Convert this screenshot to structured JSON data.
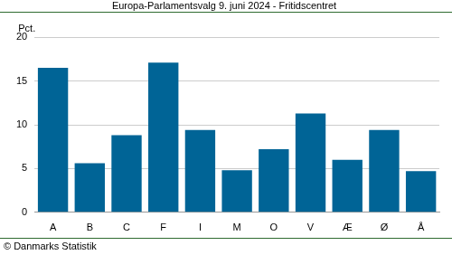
{
  "chart_data": {
    "type": "bar",
    "title": "Europa-Parlamentsvalg 9. juni 2024 - Fritidscentret",
    "ylabel": "Pct.",
    "footer": "© Danmarks Statistik",
    "categories": [
      "A",
      "B",
      "C",
      "F",
      "I",
      "M",
      "O",
      "V",
      "Æ",
      "Ø",
      "Å"
    ],
    "values": [
      16.5,
      5.6,
      8.8,
      17.1,
      9.4,
      4.8,
      7.2,
      11.3,
      6.0,
      9.4,
      4.7
    ],
    "color": "#006496",
    "ylim": [
      0,
      20
    ],
    "yticks": [
      0,
      5,
      10,
      15,
      20
    ],
    "grid": true
  }
}
